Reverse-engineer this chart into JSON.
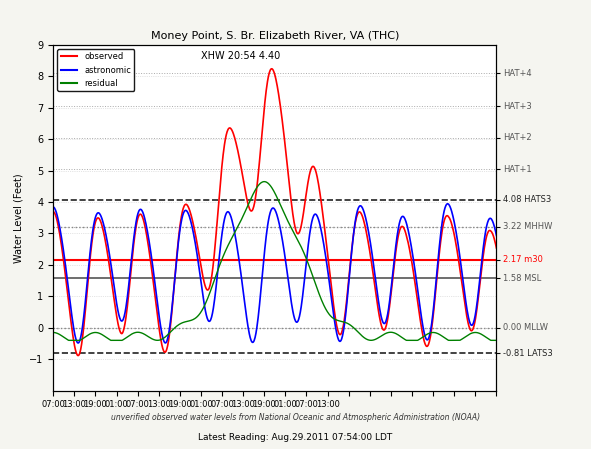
{
  "title": "Money Point, S. Br. Elizabeth River, VA (THC)",
  "xlabel_bottom": "Latest Reading: Aug.29.2011 07:54:00 LDT",
  "ylabel": "Water Level (Feet)",
  "footnote": "unverified observed water levels from National Oceanic and Atmospheric Administration (NOAA)",
  "annotation": "XHW 20:54 4.40",
  "xlim_hours": 0,
  "ylim": [
    -2,
    9
  ],
  "yticks": [
    -1,
    0,
    1,
    2,
    3,
    4,
    5,
    6,
    7,
    8,
    9
  ],
  "xtick_labels": [
    "07:00",
    "13:00",
    "19:00",
    "01:00",
    "07:00",
    "13:00",
    "19:00",
    "01:00",
    "07:00",
    "13:00",
    "19:00",
    "01:00",
    "07:00",
    "13:00"
  ],
  "hlines": {
    "HAT_S3": {
      "y": 4.08,
      "color": "#222222",
      "ls": "--",
      "lw": 1.2,
      "label": "4.08 HATS3"
    },
    "MHHW": {
      "y": 3.22,
      "color": "#888888",
      "ls": ":",
      "lw": 1.0,
      "label": "3.22 MHHW"
    },
    "m30": {
      "y": 2.17,
      "color": "red",
      "ls": "-",
      "lw": 1.5,
      "label": "2.17 m30"
    },
    "MSL": {
      "y": 1.58,
      "color": "#555555",
      "ls": "-",
      "lw": 1.2,
      "label": "1.58 MSL"
    },
    "MLLW": {
      "y": 0.0,
      "color": "#888888",
      "ls": ":",
      "lw": 1.0,
      "label": "0.00 MLLW"
    },
    "LAT_S3": {
      "y": -0.81,
      "color": "#222222",
      "ls": "--",
      "lw": 1.2,
      "label": "-0.81 LATS3"
    }
  },
  "right_labels": [
    {
      "y": 8.1,
      "text": "HAT+4",
      "color": "#555555"
    },
    {
      "y": 7.05,
      "text": "HAT+3",
      "color": "#555555"
    },
    {
      "y": 6.05,
      "text": "HAT+2",
      "color": "#555555"
    },
    {
      "y": 5.05,
      "text": "HAT+1",
      "color": "#555555"
    },
    {
      "y": 4.08,
      "text": "4.08 HATS3",
      "color": "#222222"
    },
    {
      "y": 3.22,
      "text": "3.22 MHHW",
      "color": "#555555"
    },
    {
      "y": 2.17,
      "text": "2.17 m30",
      "color": "red"
    },
    {
      "y": 1.58,
      "text": "1.58 MSL",
      "color": "#555555"
    },
    {
      "y": 0.0,
      "text": "0.00 MLLW",
      "color": "#555555"
    },
    {
      "y": -0.81,
      "text": "-0.81 LATS3",
      "color": "#222222"
    }
  ],
  "background_color": "#f5f5f0",
  "plot_bg": "#ffffff",
  "colors": {
    "observed": "red",
    "astronomic": "blue",
    "residual": "green"
  }
}
